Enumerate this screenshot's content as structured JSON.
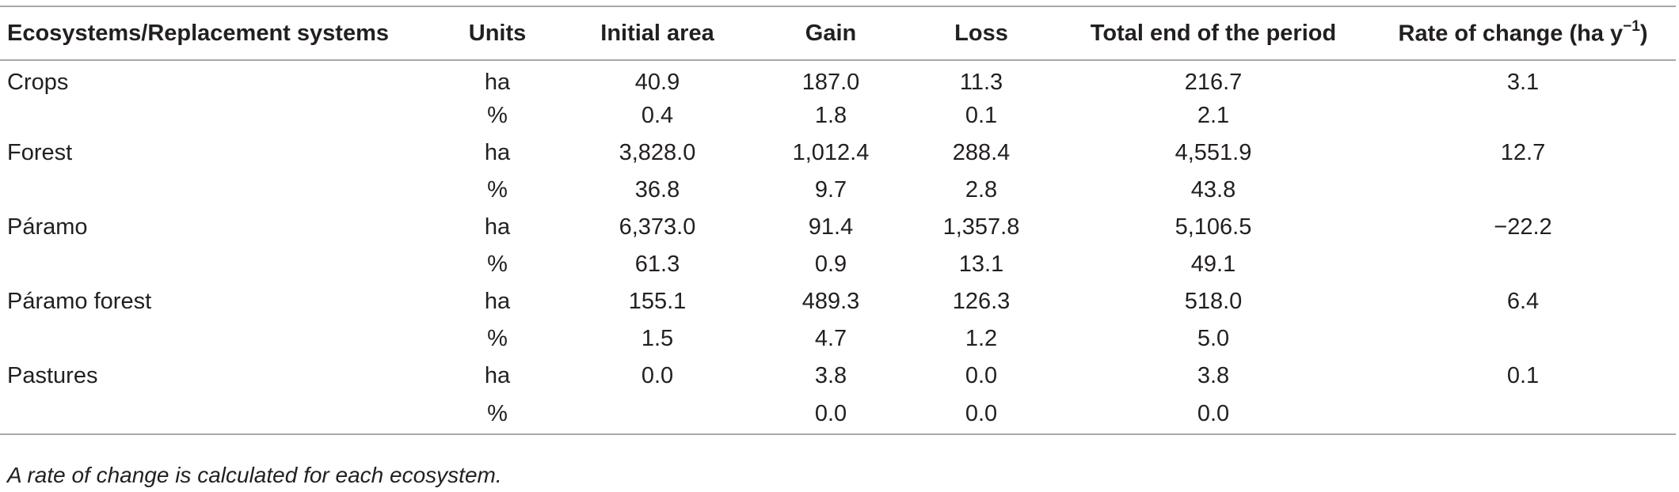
{
  "table": {
    "headers": {
      "ecosystem": "Ecosystems/Replacement systems",
      "units": "Units",
      "initial_area": "Initial area",
      "gain": "Gain",
      "loss": "Loss",
      "total_end": "Total end of the period",
      "rate_prefix": "Rate of change (ha y",
      "rate_sup": "−1",
      "rate_suffix": ")"
    },
    "rows": [
      {
        "ecosystem": "Crops",
        "units": "ha",
        "initial_area": "40.9",
        "gain": "187.0",
        "loss": "11.3",
        "total_end": "216.7",
        "rate": "3.1"
      },
      {
        "ecosystem": "",
        "units": "%",
        "initial_area": "0.4",
        "gain": "1.8",
        "loss": "0.1",
        "total_end": "2.1",
        "rate": ""
      },
      {
        "ecosystem": "Forest",
        "units": "ha",
        "initial_area": "3,828.0",
        "gain": "1,012.4",
        "loss": "288.4",
        "total_end": "4,551.9",
        "rate": "12.7"
      },
      {
        "ecosystem": "",
        "units": "%",
        "initial_area": "36.8",
        "gain": "9.7",
        "loss": "2.8",
        "total_end": "43.8",
        "rate": ""
      },
      {
        "ecosystem": "Páramo",
        "units": "ha",
        "initial_area": "6,373.0",
        "gain": "91.4",
        "loss": "1,357.8",
        "total_end": "5,106.5",
        "rate": "−22.2"
      },
      {
        "ecosystem": "",
        "units": "%",
        "initial_area": "61.3",
        "gain": "0.9",
        "loss": "13.1",
        "total_end": "49.1",
        "rate": ""
      },
      {
        "ecosystem": "Páramo forest",
        "units": "ha",
        "initial_area": "155.1",
        "gain": "489.3",
        "loss": "126.3",
        "total_end": "518.0",
        "rate": "6.4"
      },
      {
        "ecosystem": "",
        "units": "%",
        "initial_area": "1.5",
        "gain": "4.7",
        "loss": "1.2",
        "total_end": "5.0",
        "rate": ""
      },
      {
        "ecosystem": "Pastures",
        "units": "ha",
        "initial_area": "0.0",
        "gain": "3.8",
        "loss": "0.0",
        "total_end": "3.8",
        "rate": "0.1"
      },
      {
        "ecosystem": "",
        "units": "%",
        "initial_area": "",
        "gain": "0.0",
        "loss": "0.0",
        "total_end": "0.0",
        "rate": ""
      }
    ]
  },
  "footnote": "A rate of change is calculated for each ecosystem."
}
